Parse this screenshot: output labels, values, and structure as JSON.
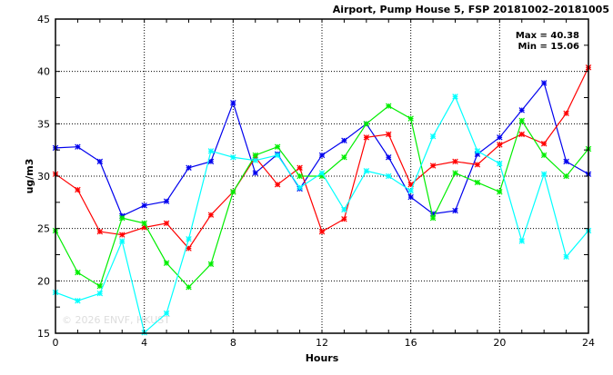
{
  "chart_data": {
    "type": "line",
    "title": "Airport, Pump House 5, FSP 20181002–20181005",
    "xlabel": "Hours",
    "ylabel": "ug/m3",
    "xlim": [
      0,
      24
    ],
    "ylim": [
      15,
      45
    ],
    "xticks": [
      0,
      4,
      8,
      12,
      16,
      20,
      24
    ],
    "yticks": [
      15,
      20,
      25,
      30,
      35,
      40,
      45
    ],
    "grid": true,
    "annotations": {
      "max": "Max = 40.38",
      "min": "Min = 15.06"
    },
    "watermark": "© 2026  ENVF, HKUST",
    "x": [
      0,
      1,
      2,
      3,
      4,
      5,
      6,
      7,
      8,
      9,
      10,
      11,
      12,
      13,
      14,
      15,
      16,
      17,
      18,
      19,
      20,
      21,
      22,
      23,
      24
    ],
    "series": [
      {
        "name": "blue",
        "color": "#0000ee",
        "values": [
          32.7,
          32.8,
          31.4,
          26.2,
          27.2,
          27.6,
          30.8,
          31.4,
          37.0,
          30.3,
          32.1,
          28.8,
          32.0,
          33.4,
          35.0,
          31.8,
          28.0,
          26.4,
          26.7,
          32.1,
          33.7,
          36.3,
          38.9,
          31.4,
          30.2
        ]
      },
      {
        "name": "red",
        "color": "#ff0000",
        "values": [
          30.2,
          28.7,
          24.7,
          24.4,
          25.1,
          25.5,
          23.1,
          26.3,
          28.5,
          31.8,
          29.2,
          30.8,
          24.7,
          25.9,
          33.7,
          34.0,
          29.2,
          31.0,
          31.4,
          31.1,
          33.0,
          34.0,
          33.1,
          36.0,
          40.38
        ]
      },
      {
        "name": "green",
        "color": "#00ee00",
        "values": [
          24.8,
          20.8,
          19.5,
          26.0,
          25.5,
          21.7,
          19.4,
          21.6,
          28.5,
          32.0,
          32.8,
          30.0,
          30.0,
          31.8,
          35.0,
          36.7,
          35.5,
          26.0,
          30.3,
          29.4,
          28.5,
          35.3,
          32.0,
          30.0,
          32.6
        ]
      },
      {
        "name": "cyan",
        "color": "#00ffff",
        "values": [
          18.9,
          18.1,
          18.8,
          23.8,
          15.06,
          16.9,
          24.0,
          32.4,
          31.8,
          31.5,
          32.0,
          28.9,
          30.3,
          26.8,
          30.5,
          30.0,
          28.6,
          33.8,
          37.6,
          32.4,
          31.2,
          23.8,
          30.2,
          22.3,
          24.8
        ]
      }
    ]
  }
}
